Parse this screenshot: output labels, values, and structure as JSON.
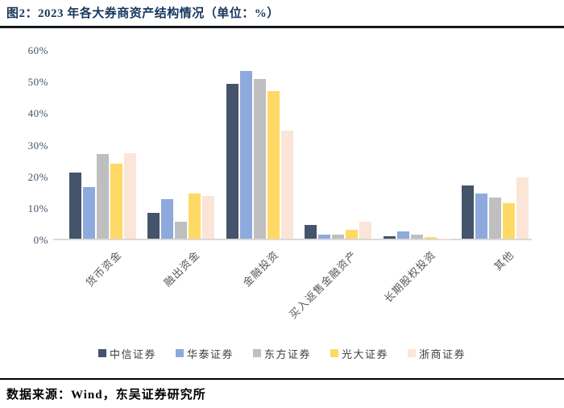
{
  "figure": {
    "title": "图2：2023 年各大券商资产结构情况（单位：%）",
    "source_note": "数据来源：Wind，东吴证券研究所"
  },
  "chart_data": {
    "type": "bar",
    "title": "2023 年各大券商资产结构情况",
    "unit": "%",
    "categories": [
      "货币资金",
      "融出资金",
      "金融投资",
      "买入返售金融资产",
      "长期股权投资",
      "其他"
    ],
    "series": [
      {
        "name": "中信证券",
        "color": "#44546A",
        "values": [
          21.0,
          8.3,
          49.5,
          4.3,
          0.7,
          17.0
        ]
      },
      {
        "name": "华泰证券",
        "color": "#8EA9DB",
        "values": [
          16.5,
          12.5,
          53.5,
          1.4,
          2.2,
          14.4
        ]
      },
      {
        "name": "东方证券",
        "color": "#BFBFBF",
        "values": [
          27.0,
          5.4,
          51.0,
          1.4,
          1.2,
          13.2
        ]
      },
      {
        "name": "光大证券",
        "color": "#FFD966",
        "values": [
          24.0,
          14.4,
          47.0,
          2.8,
          0.4,
          11.4
        ]
      },
      {
        "name": "浙商证券",
        "color": "#FBE5D6",
        "values": [
          27.2,
          13.7,
          34.5,
          5.3,
          0.1,
          19.5
        ]
      }
    ],
    "ylim": [
      0,
      60
    ],
    "ytick_step": 10,
    "ytick_labels": [
      "0%",
      "10%",
      "20%",
      "30%",
      "40%",
      "50%",
      "60%"
    ],
    "grid": false,
    "legend_position": "bottom",
    "xlabel": "",
    "ylabel": ""
  }
}
